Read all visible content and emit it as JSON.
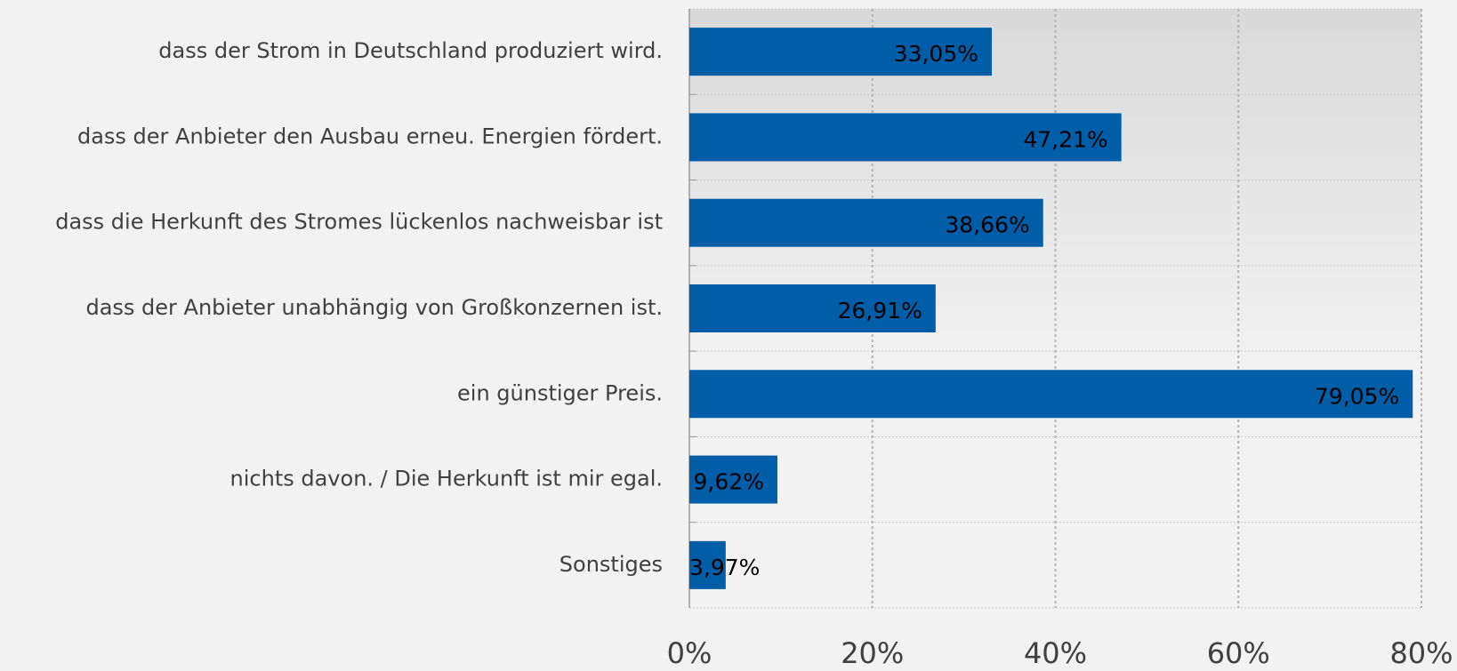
{
  "chart_data": {
    "type": "bar",
    "orientation": "horizontal",
    "categories": [
      "dass der Strom in Deutschland produziert wird.",
      "dass der Anbieter den Ausbau erneu. Energien fördert.",
      "dass die Herkunft des Stromes lückenlos nachweisbar ist",
      "dass der Anbieter unabhängig von Großkonzernen ist.",
      "ein günstiger Preis.",
      "nichts davon. / Die Herkunft ist mir egal.",
      "Sonstiges"
    ],
    "values": [
      33.05,
      47.21,
      38.66,
      26.91,
      79.05,
      9.62,
      3.97
    ],
    "value_labels": [
      "33,05%",
      "47,21%",
      "38,66%",
      "26,91%",
      "79,05%",
      "9,62%",
      "3,97%"
    ],
    "color": "#005ea8",
    "xlim": [
      0,
      80
    ],
    "xticks": [
      {
        "value": 0,
        "label": "0%"
      },
      {
        "value": 20,
        "label": "20%"
      },
      {
        "value": 40,
        "label": "40%"
      },
      {
        "value": 60,
        "label": "60%"
      },
      {
        "value": 80,
        "label": "80%"
      }
    ],
    "grid": true
  }
}
